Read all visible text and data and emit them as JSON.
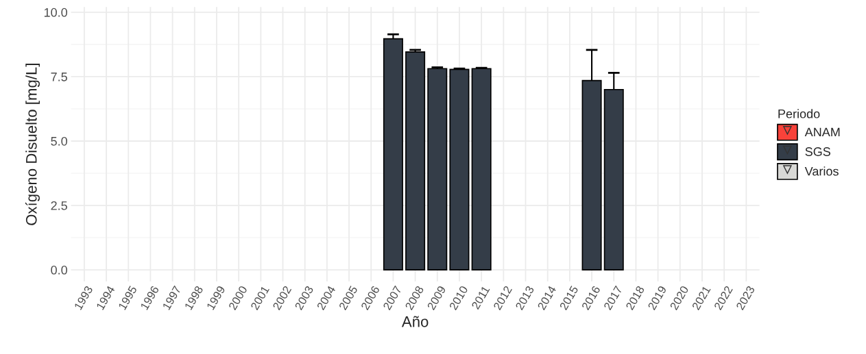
{
  "chart_data": {
    "type": "bar",
    "xlabel": "Año",
    "ylabel": "Oxígeno Disuelto [mg/L]",
    "legend_title": "Periodo",
    "categories": [
      "1993",
      "1994",
      "1995",
      "1996",
      "1997",
      "1998",
      "1999",
      "2000",
      "2001",
      "2002",
      "2003",
      "2004",
      "2005",
      "2006",
      "2007",
      "2008",
      "2009",
      "2010",
      "2011",
      "2012",
      "2013",
      "2014",
      "2015",
      "2016",
      "2017",
      "2018",
      "2019",
      "2020",
      "2021",
      "2022",
      "2023"
    ],
    "series": [
      {
        "name": "ANAM",
        "color": "#f8423a",
        "values": [
          null,
          null,
          null,
          null,
          null,
          null,
          null,
          null,
          null,
          null,
          null,
          null,
          null,
          null,
          null,
          null,
          null,
          null,
          null,
          null,
          null,
          null,
          null,
          null,
          null,
          null,
          null,
          null,
          null,
          null,
          null
        ]
      },
      {
        "name": "SGS",
        "color": "#343d48",
        "values": [
          null,
          null,
          null,
          null,
          null,
          null,
          null,
          null,
          null,
          null,
          null,
          null,
          null,
          null,
          8.97,
          8.46,
          7.81,
          7.78,
          7.81,
          null,
          null,
          null,
          null,
          7.35,
          7.0,
          null,
          null,
          null,
          null,
          null,
          null
        ],
        "errors": [
          null,
          null,
          null,
          null,
          null,
          null,
          null,
          null,
          null,
          null,
          null,
          null,
          null,
          null,
          0.17,
          0.08,
          0.05,
          0.03,
          0.03,
          null,
          null,
          null,
          null,
          1.19,
          0.65,
          null,
          null,
          null,
          null,
          null,
          null
        ]
      },
      {
        "name": "Varios",
        "color": "#d9d9d6",
        "values": [
          null,
          null,
          null,
          null,
          null,
          null,
          null,
          null,
          null,
          null,
          null,
          null,
          null,
          null,
          null,
          null,
          null,
          null,
          null,
          null,
          null,
          null,
          null,
          null,
          null,
          null,
          null,
          null,
          null,
          null,
          null
        ]
      }
    ],
    "ylim": [
      -0.45,
      10.2
    ],
    "yticks": [
      {
        "value": 0,
        "label": "0.0"
      },
      {
        "value": 2.5,
        "label": "2.5"
      },
      {
        "value": 5,
        "label": "5.0"
      },
      {
        "value": 7.5,
        "label": "7.5"
      },
      {
        "value": 10,
        "label": "10.0"
      }
    ],
    "grid": true,
    "legend": "right",
    "marker": "triangle"
  }
}
